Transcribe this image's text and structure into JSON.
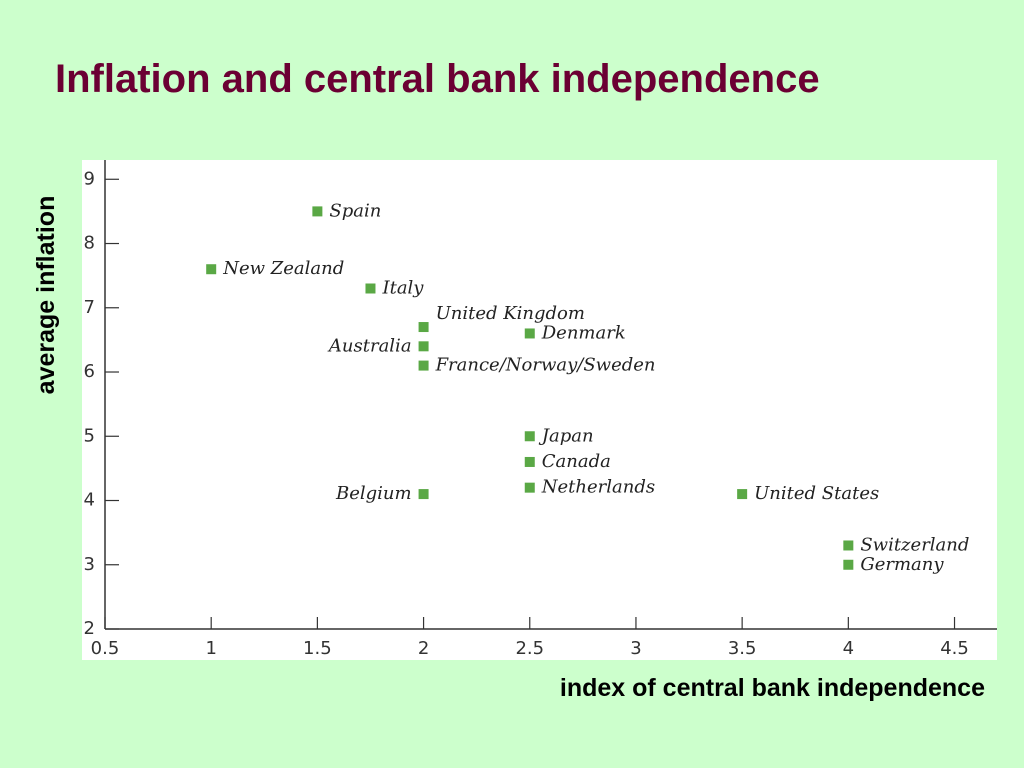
{
  "chart_data": {
    "type": "scatter",
    "title": "Inflation and central bank independence",
    "x_label": "index of central bank independence",
    "y_label": "average inflation",
    "point_labels": [
      "Spain",
      "New Zealand",
      "Italy",
      "United Kingdom",
      "Denmark",
      "Australia",
      "France/Norway/Sweden",
      "Japan",
      "Canada",
      "Netherlands",
      "Belgium",
      "United States",
      "Switzerland",
      "Germany"
    ],
    "x": [
      1.5,
      1,
      1.75,
      2,
      2.5,
      2,
      2,
      2.5,
      2.5,
      2.5,
      2,
      3.5,
      4,
      4
    ],
    "values": [
      8.5,
      7.6,
      7.3,
      6.7,
      6.6,
      6.4,
      6.1,
      5.0,
      4.6,
      4.2,
      4.1,
      4.1,
      3.3,
      3.0
    ],
    "color": "#5aa845",
    "xlim": [
      0.5,
      4.7
    ],
    "xticks": [
      0.5,
      1,
      1.5,
      2,
      2.5,
      3,
      3.5,
      4,
      4.5
    ],
    "ylim": [
      2,
      9.3
    ],
    "yticks": [
      2,
      3,
      4,
      5,
      6,
      7,
      8,
      9
    ]
  }
}
